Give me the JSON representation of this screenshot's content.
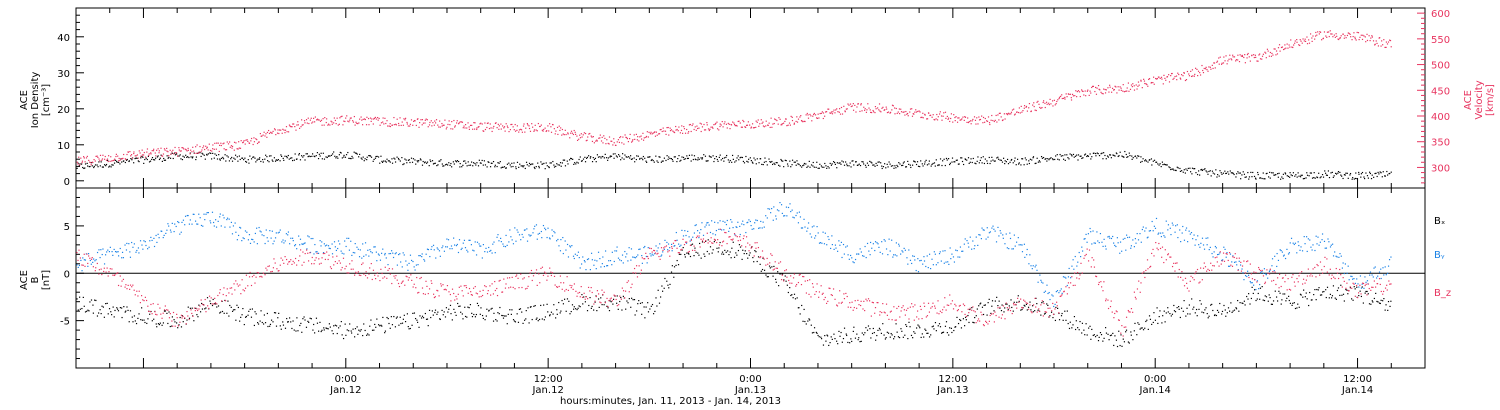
{
  "colors": {
    "black": "#000000",
    "pink": "#e8345f",
    "blue": "#1a82e6"
  },
  "chart_data": [
    {
      "type": "scatter",
      "panel": "top",
      "ylabel_left": [
        "ACE",
        "Ion Density",
        "[cm⁻³]"
      ],
      "ylabel_right": [
        "ACE",
        "Velocity",
        "[km/s]"
      ],
      "y_left_ticks": [
        "0",
        "10",
        "20",
        "30",
        "40"
      ],
      "y_left_range": [
        -2,
        48
      ],
      "y_right_ticks": [
        "300",
        "350",
        "400",
        "450",
        "500",
        "550",
        "600"
      ],
      "y_right_range": [
        260,
        610
      ],
      "x_range_hours": [
        -16,
        64
      ],
      "series": [
        {
          "color": "#000000",
          "axis": "left",
          "x_hours": [
            -16,
            -14,
            -12,
            -10,
            -8,
            -6,
            -4,
            -2,
            0,
            2,
            4,
            6,
            8,
            10,
            12,
            14,
            16,
            18,
            20,
            22,
            24,
            26,
            28,
            30,
            32,
            34,
            36,
            38,
            40,
            42,
            44,
            46,
            48,
            50,
            52,
            54,
            56,
            58,
            60,
            62,
            64
          ],
          "values": [
            4,
            5,
            6,
            7,
            7,
            6,
            6.5,
            7,
            7.5,
            6,
            5.5,
            5,
            5,
            4.5,
            4.5,
            6,
            7,
            6,
            6.5,
            6.5,
            6,
            5,
            4.5,
            5,
            4.5,
            5,
            5.5,
            6,
            5.5,
            6.5,
            7,
            7.5,
            5,
            3,
            2,
            1.5,
            1.5,
            2,
            1.5,
            1.8,
            1.5
          ]
        },
        {
          "color": "#e8345f",
          "axis": "right",
          "x_hours": [
            -16,
            -14,
            -12,
            -10,
            -8,
            -6,
            -4,
            -2,
            0,
            2,
            4,
            6,
            8,
            10,
            12,
            14,
            16,
            18,
            20,
            22,
            24,
            26,
            28,
            30,
            32,
            34,
            36,
            38,
            40,
            42,
            44,
            46,
            48,
            50,
            52,
            54,
            56,
            58,
            60,
            62,
            64
          ],
          "values": [
            312,
            320,
            328,
            332,
            340,
            345,
            375,
            390,
            393,
            390,
            388,
            385,
            380,
            378,
            378,
            360,
            352,
            365,
            375,
            383,
            385,
            390,
            402,
            418,
            415,
            405,
            398,
            392,
            412,
            430,
            450,
            455,
            470,
            480,
            510,
            515,
            540,
            560,
            555,
            540,
            530
          ]
        }
      ]
    },
    {
      "type": "scatter",
      "panel": "bottom",
      "ylabel": [
        "ACE",
        "B",
        "[nT]"
      ],
      "y_ticks": [
        "-5",
        "0",
        "5"
      ],
      "y_range": [
        -10,
        9
      ],
      "x_range_hours": [
        -16,
        64
      ],
      "x_tick_labels": [
        {
          "x_hours": 0,
          "time": "0:00",
          "date": "Jan.12"
        },
        {
          "x_hours": 12,
          "time": "12:00",
          "date": "Jan.12"
        },
        {
          "x_hours": 24,
          "time": "0:00",
          "date": "Jan.13"
        },
        {
          "x_hours": 36,
          "time": "12:00",
          "date": "Jan.13"
        },
        {
          "x_hours": 48,
          "time": "0:00",
          "date": "Jan.14"
        },
        {
          "x_hours": 60,
          "time": "12:00",
          "date": "Jan.14"
        }
      ],
      "xlabel": "hours:minutes, Jan. 11, 2013 - Jan. 14, 2013",
      "series": [
        {
          "name": "Bₓ",
          "color": "#000000",
          "x_hours": [
            -16,
            -14,
            -12,
            -10,
            -8,
            -6,
            -4,
            -2,
            0,
            2,
            4,
            6,
            8,
            10,
            12,
            14,
            16,
            18,
            20,
            22,
            24,
            26,
            28,
            30,
            32,
            34,
            36,
            38,
            40,
            42,
            44,
            46,
            48,
            50,
            52,
            54,
            56,
            58,
            60,
            62,
            64
          ],
          "values": [
            -3,
            -4,
            -4.5,
            -5,
            -3,
            -4.5,
            -5,
            -5.5,
            -6,
            -5.5,
            -5,
            -4,
            -4,
            -4.5,
            -4,
            -3,
            -3,
            -4,
            2,
            3,
            2,
            -1,
            -7,
            -6.5,
            -6,
            -6,
            -5.5,
            -3.5,
            -3,
            -4,
            -6,
            -7,
            -4.5,
            -3.5,
            -4,
            -2,
            -3,
            -2,
            -2,
            -3.5,
            -3
          ]
        },
        {
          "name": "Bᵧ",
          "color": "#1a82e6",
          "x_hours": [
            -16,
            -14,
            -12,
            -10,
            -8,
            -6,
            -4,
            -2,
            0,
            2,
            4,
            6,
            8,
            10,
            12,
            14,
            16,
            18,
            20,
            22,
            24,
            26,
            28,
            30,
            32,
            34,
            36,
            38,
            40,
            42,
            44,
            46,
            48,
            50,
            52,
            54,
            56,
            58,
            60,
            62,
            64
          ],
          "values": [
            1,
            2,
            3,
            5,
            6,
            4,
            4,
            3,
            3,
            2,
            1,
            3,
            2.5,
            4,
            4.5,
            1,
            2,
            2,
            4,
            5,
            5,
            7,
            4,
            2,
            3,
            1,
            2,
            4.5,
            3,
            -3,
            4,
            3,
            5,
            4,
            2,
            -1,
            3,
            3.5,
            -1,
            1,
            0.5
          ]
        },
        {
          "name": "B_z",
          "color": "#e8345f",
          "x_hours": [
            -16,
            -14,
            -12,
            -10,
            -8,
            -6,
            -4,
            -2,
            0,
            2,
            4,
            6,
            8,
            10,
            12,
            14,
            16,
            18,
            20,
            22,
            24,
            26,
            28,
            30,
            32,
            34,
            36,
            38,
            40,
            42,
            44,
            46,
            48,
            50,
            52,
            54,
            56,
            58,
            60,
            62,
            64
          ],
          "values": [
            2,
            0,
            -3,
            -5,
            -3,
            -1,
            1,
            2,
            1,
            0,
            -1,
            -2,
            -2,
            -1,
            0,
            -2,
            -3,
            2,
            3,
            4,
            3,
            0,
            -2,
            -3,
            -4,
            -4,
            -3,
            -5,
            -3,
            -4,
            2,
            -6,
            3,
            -1,
            2,
            0,
            -1,
            1,
            -2,
            -1,
            -1
          ]
        }
      ]
    }
  ]
}
